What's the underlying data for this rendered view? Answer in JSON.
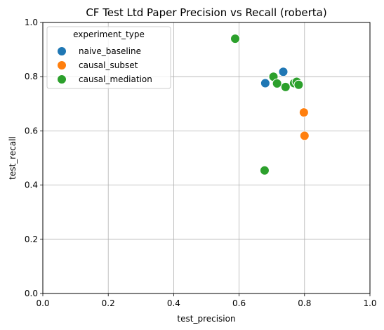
{
  "chart_data": {
    "type": "scatter",
    "title": "CF Test Ltd Paper Precision vs Recall (roberta)",
    "xlabel": "test_precision",
    "ylabel": "test_recall",
    "xlim": [
      0.0,
      1.0
    ],
    "ylim": [
      0.0,
      1.0
    ],
    "xticks": [
      "0.0",
      "0.2",
      "0.4",
      "0.6",
      "0.8",
      "1.0"
    ],
    "yticks": [
      "0.0",
      "0.2",
      "0.4",
      "0.6",
      "0.8",
      "1.0"
    ],
    "grid": true,
    "legend": {
      "title": "experiment_type",
      "placement": "top-left"
    },
    "series": [
      {
        "name": "naive_baseline",
        "color": "#1f77b4",
        "points": [
          {
            "x": 0.68,
            "y": 0.776
          },
          {
            "x": 0.735,
            "y": 0.818
          }
        ]
      },
      {
        "name": "causal_subset",
        "color": "#ff7f0e",
        "points": [
          {
            "x": 0.798,
            "y": 0.668
          },
          {
            "x": 0.8,
            "y": 0.582
          }
        ]
      },
      {
        "name": "causal_mediation",
        "color": "#2ca02c",
        "points": [
          {
            "x": 0.588,
            "y": 0.94
          },
          {
            "x": 0.705,
            "y": 0.8
          },
          {
            "x": 0.716,
            "y": 0.775
          },
          {
            "x": 0.742,
            "y": 0.762
          },
          {
            "x": 0.768,
            "y": 0.776
          },
          {
            "x": 0.776,
            "y": 0.781
          },
          {
            "x": 0.782,
            "y": 0.77
          },
          {
            "x": 0.678,
            "y": 0.454
          }
        ]
      }
    ]
  }
}
